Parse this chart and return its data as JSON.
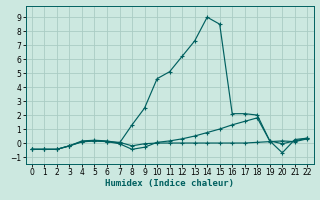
{
  "xlabel": "Humidex (Indice chaleur)",
  "background_color": "#cce8e0",
  "grid_color": "#aaccc4",
  "line_color": "#006060",
  "xlim": [
    -0.5,
    22.5
  ],
  "ylim": [
    -1.5,
    9.8
  ],
  "xticks": [
    0,
    1,
    2,
    3,
    4,
    5,
    6,
    7,
    8,
    9,
    10,
    11,
    12,
    13,
    14,
    15,
    16,
    17,
    18,
    19,
    20,
    21,
    22
  ],
  "yticks": [
    -1,
    0,
    1,
    2,
    3,
    4,
    5,
    6,
    7,
    8,
    9
  ],
  "series1_x": [
    0,
    1,
    2,
    3,
    4,
    5,
    6,
    7,
    8,
    9,
    10,
    11,
    12,
    13,
    14,
    15,
    16,
    17,
    18,
    19,
    20,
    21,
    22
  ],
  "series1_y": [
    -0.45,
    -0.45,
    -0.45,
    -0.2,
    0.1,
    0.15,
    0.1,
    0.05,
    -0.2,
    -0.05,
    0.0,
    0.0,
    0.0,
    0.0,
    0.0,
    0.0,
    0.0,
    0.0,
    0.05,
    0.1,
    0.15,
    0.1,
    0.3
  ],
  "series2_x": [
    0,
    1,
    2,
    3,
    4,
    5,
    6,
    7,
    8,
    9,
    10,
    11,
    12,
    13,
    14,
    15,
    16,
    17,
    18,
    19,
    20,
    21,
    22
  ],
  "series2_y": [
    -0.45,
    -0.45,
    -0.45,
    -0.2,
    0.15,
    0.2,
    0.15,
    0.0,
    1.3,
    2.5,
    4.6,
    5.1,
    6.2,
    7.3,
    9.0,
    8.5,
    2.1,
    2.1,
    2.0,
    0.15,
    -0.7,
    0.25,
    0.35
  ],
  "series3_x": [
    0,
    1,
    2,
    3,
    4,
    5,
    6,
    7,
    8,
    9,
    10,
    11,
    12,
    13,
    14,
    15,
    16,
    17,
    18,
    19,
    20,
    21,
    22
  ],
  "series3_y": [
    -0.45,
    -0.45,
    -0.45,
    -0.2,
    0.08,
    0.15,
    0.1,
    -0.05,
    -0.45,
    -0.3,
    0.05,
    0.15,
    0.3,
    0.5,
    0.75,
    1.0,
    1.3,
    1.55,
    1.8,
    0.15,
    -0.05,
    0.15,
    0.35
  ]
}
